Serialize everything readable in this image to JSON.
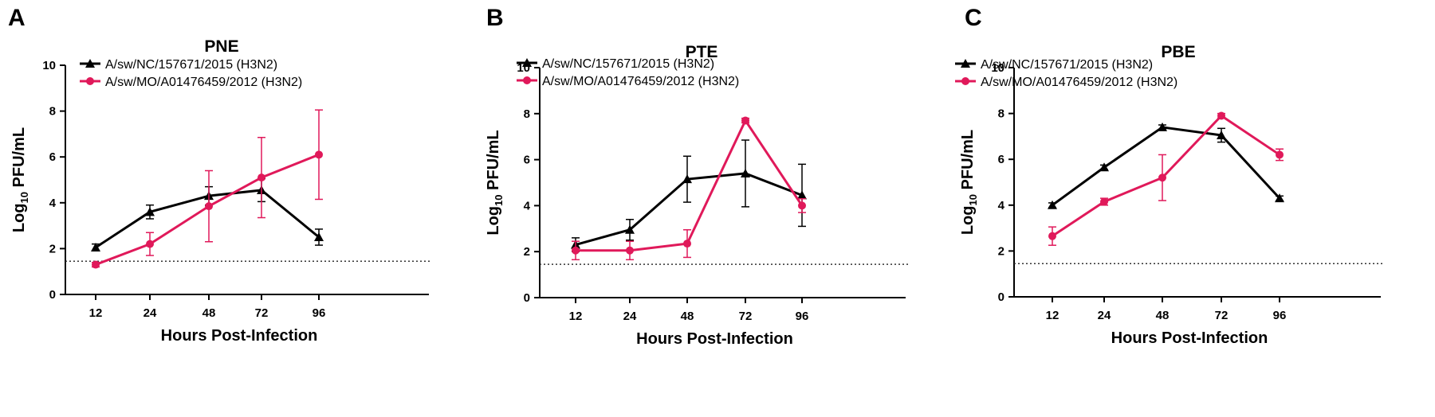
{
  "chart_data": [
    {
      "type": "line",
      "panel": "A",
      "title": "PNE",
      "xlabel": "Hours Post-Infection",
      "ylabel": "Log10 PFU/mL",
      "ylabel_main": "Log",
      "ylabel_sub": "10",
      "ylabel_rest": " PFU/mL",
      "categories": [
        "12",
        "24",
        "48",
        "72",
        "96"
      ],
      "yticks": [
        "0",
        "2",
        "4",
        "6",
        "8",
        "10"
      ],
      "ylim": [
        0,
        10
      ],
      "detection_limit": 1.45,
      "legend": "top-left",
      "series": [
        {
          "name": "A/sw/NC/157671/2015 (H3N2)",
          "color": "#000000",
          "marker": "triangle",
          "values": [
            2.05,
            3.6,
            4.3,
            4.55,
            2.5
          ],
          "errors": [
            0.15,
            0.3,
            0.4,
            0.5,
            0.35
          ]
        },
        {
          "name": "A/sw/MO/A01476459/2012 (H3N2)",
          "color": "#e0195a",
          "marker": "circle",
          "values": [
            1.3,
            2.2,
            3.85,
            5.1,
            6.1
          ],
          "errors": [
            0.1,
            0.5,
            1.55,
            1.75,
            1.95
          ]
        }
      ]
    },
    {
      "type": "line",
      "panel": "B",
      "title": "PTE",
      "xlabel": "Hours Post-Infection",
      "ylabel": "Log10 PFU/mL",
      "ylabel_main": "Log",
      "ylabel_sub": "10",
      "ylabel_rest": " PFU/mL",
      "categories": [
        "12",
        "24",
        "48",
        "72",
        "96"
      ],
      "yticks": [
        "0",
        "2",
        "4",
        "6",
        "8",
        "10"
      ],
      "ylim": [
        0,
        10
      ],
      "detection_limit": 1.45,
      "legend": "top-left",
      "series": [
        {
          "name": "A/sw/NC/157671/2015 (H3N2)",
          "color": "#000000",
          "marker": "triangle",
          "values": [
            2.3,
            2.95,
            5.15,
            5.4,
            4.45
          ],
          "errors": [
            0.3,
            0.45,
            1.0,
            1.45,
            1.35
          ]
        },
        {
          "name": "A/sw/MO/A01476459/2012 (H3N2)",
          "color": "#e0195a",
          "marker": "circle",
          "values": [
            2.05,
            2.05,
            2.35,
            7.7,
            4.0
          ],
          "errors": [
            0.4,
            0.4,
            0.6,
            0.1,
            0.3
          ]
        }
      ]
    },
    {
      "type": "line",
      "panel": "C",
      "title": "PBE",
      "xlabel": "Hours Post-Infection",
      "ylabel": "Log10 PFU/mL",
      "ylabel_main": "Log",
      "ylabel_sub": "10",
      "ylabel_rest": " PFU/mL",
      "categories": [
        "12",
        "24",
        "48",
        "72",
        "96"
      ],
      "yticks": [
        "0",
        "2",
        "4",
        "6",
        "8",
        "10"
      ],
      "ylim": [
        0,
        10
      ],
      "detection_limit": 1.45,
      "legend": "top-left",
      "series": [
        {
          "name": "A/sw/NC/157671/2015 (H3N2)",
          "color": "#000000",
          "marker": "triangle",
          "values": [
            4.0,
            5.65,
            7.4,
            7.05,
            4.3
          ],
          "errors": [
            0.1,
            0.1,
            0.1,
            0.3,
            0.1
          ]
        },
        {
          "name": "A/sw/MO/A01476459/2012 (H3N2)",
          "color": "#e0195a",
          "marker": "circle",
          "values": [
            2.65,
            4.15,
            5.2,
            7.9,
            6.2
          ],
          "errors": [
            0.4,
            0.15,
            1.0,
            0.1,
            0.25
          ]
        }
      ]
    }
  ]
}
